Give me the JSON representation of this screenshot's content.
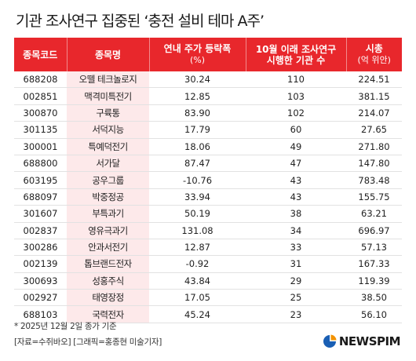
{
  "title": "기관 조사연구 집중된 ‘충전 설비 테마 A주’",
  "headers": {
    "code": "종목코드",
    "name": "종목명",
    "change": "연내 주가 등락폭",
    "change_unit": "(%)",
    "visits": "10월 이래 조사연구",
    "visits_2": "시행한 기관 수",
    "mcap": "시총",
    "mcap_unit": "(억 위안)"
  },
  "rows": [
    {
      "code": "688208",
      "name": "오뗄 테크놀로지",
      "change": "30.24",
      "visits": "110",
      "mcap": "224.51"
    },
    {
      "code": "002851",
      "name": "맥격미특전기",
      "change": "12.85",
      "visits": "103",
      "mcap": "381.15"
    },
    {
      "code": "300870",
      "name": "구륙통",
      "change": "83.90",
      "visits": "102",
      "mcap": "214.07"
    },
    {
      "code": "301135",
      "name": "서덕지능",
      "change": "17.79",
      "visits": "60",
      "mcap": "27.65"
    },
    {
      "code": "300001",
      "name": "특예덕전기",
      "change": "18.06",
      "visits": "49",
      "mcap": "271.80"
    },
    {
      "code": "688800",
      "name": "서가달",
      "change": "87.47",
      "visits": "47",
      "mcap": "147.80"
    },
    {
      "code": "603195",
      "name": "공우그룹",
      "change": "-10.76",
      "visits": "43",
      "mcap": "783.48"
    },
    {
      "code": "688097",
      "name": "박중정공",
      "change": "33.94",
      "visits": "43",
      "mcap": "155.75"
    },
    {
      "code": "301607",
      "name": "부특과기",
      "change": "50.19",
      "visits": "38",
      "mcap": "63.21"
    },
    {
      "code": "002837",
      "name": "영유극과기",
      "change": "131.08",
      "visits": "34",
      "mcap": "696.97"
    },
    {
      "code": "300286",
      "name": "안과서전기",
      "change": "12.87",
      "visits": "33",
      "mcap": "57.13"
    },
    {
      "code": "002139",
      "name": "톱브랜드전자",
      "change": "-0.92",
      "visits": "31",
      "mcap": "167.33"
    },
    {
      "code": "300693",
      "name": "성홍주식",
      "change": "43.84",
      "visits": "29",
      "mcap": "119.39"
    },
    {
      "code": "002927",
      "name": "태영장정",
      "change": "17.05",
      "visits": "25",
      "mcap": "38.50"
    },
    {
      "code": "688103",
      "name": "국력전자",
      "change": "45.24",
      "visits": "23",
      "mcap": "56.10"
    }
  ],
  "footnote": "* 2025년 12월 2일 종가 기준",
  "source": "[자료=수쥐바오] [그래픽=홍종현 미술기자]",
  "logo_text": "NEWSPIM",
  "colors": {
    "header_bg": "#e8272c",
    "name_col_bg": "#fde9ea",
    "logo_blue": "#1a5fb4",
    "logo_orange": "#f39200"
  },
  "icons": {
    "logo": "newspim-logo-icon"
  }
}
